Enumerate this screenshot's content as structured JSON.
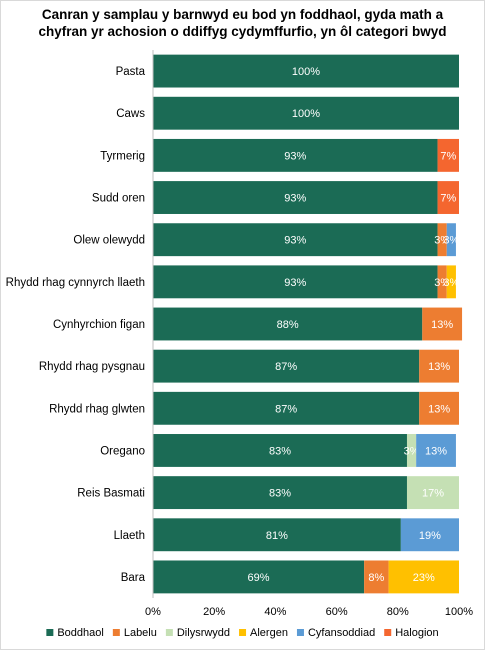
{
  "chart_data": {
    "type": "bar",
    "orientation": "horizontal",
    "stacked": true,
    "title": "Canran y samplau y barnwyd eu bod yn foddhaol, gyda math a chyfran yr achosion o ddiffyg cydymffurfio, yn ôl categori bwyd",
    "title_lines": [
      "Canran y samplau y barnwyd eu bod yn foddhaol, gyda math a",
      "chyfran yr achosion o ddiffyg cydymffurfio, yn ôl categori bwyd"
    ],
    "categories": [
      "Pasta",
      "Caws",
      "Tyrmerig",
      "Sudd oren",
      "Olew olewydd",
      "Rhydd rhag cynnyrch llaeth",
      "Cynhyrchion figan",
      "Rhydd rhag pysgnau",
      "Rhydd rhag glwten",
      "Oregano",
      "Reis Basmati",
      "Llaeth",
      "Bara"
    ],
    "series": [
      {
        "name": "Boddhaol",
        "color": "#1b6b55",
        "values": [
          100,
          100,
          93,
          93,
          93,
          93,
          88,
          87,
          87,
          83,
          83,
          81,
          69
        ]
      },
      {
        "name": "Labelu",
        "color": "#ed7d31",
        "values": [
          0,
          0,
          0,
          0,
          3,
          3,
          13,
          13,
          13,
          0,
          0,
          0,
          8
        ]
      },
      {
        "name": "Dilysrwydd",
        "color": "#c5e0b4",
        "values": [
          0,
          0,
          0,
          0,
          0,
          0,
          0,
          0,
          0,
          3,
          17,
          0,
          0
        ]
      },
      {
        "name": "Alergen",
        "color": "#ffc000",
        "values": [
          0,
          0,
          0,
          0,
          0,
          3,
          0,
          0,
          0,
          0,
          0,
          0,
          23
        ]
      },
      {
        "name": "Cyfansoddiad",
        "color": "#5b9bd5",
        "values": [
          0,
          0,
          0,
          0,
          3,
          0,
          0,
          0,
          0,
          13,
          0,
          19,
          0
        ]
      },
      {
        "name": "Halogion",
        "color": "#f4662f",
        "values": [
          0,
          0,
          7,
          7,
          0,
          0,
          0,
          0,
          0,
          0,
          0,
          0,
          0
        ]
      }
    ],
    "xlim": [
      0,
      100
    ],
    "x_ticks": [
      "0%",
      "20%",
      "40%",
      "60%",
      "80%",
      "100%"
    ],
    "value_suffix": "%",
    "grid": false,
    "legend_position": "bottom"
  }
}
